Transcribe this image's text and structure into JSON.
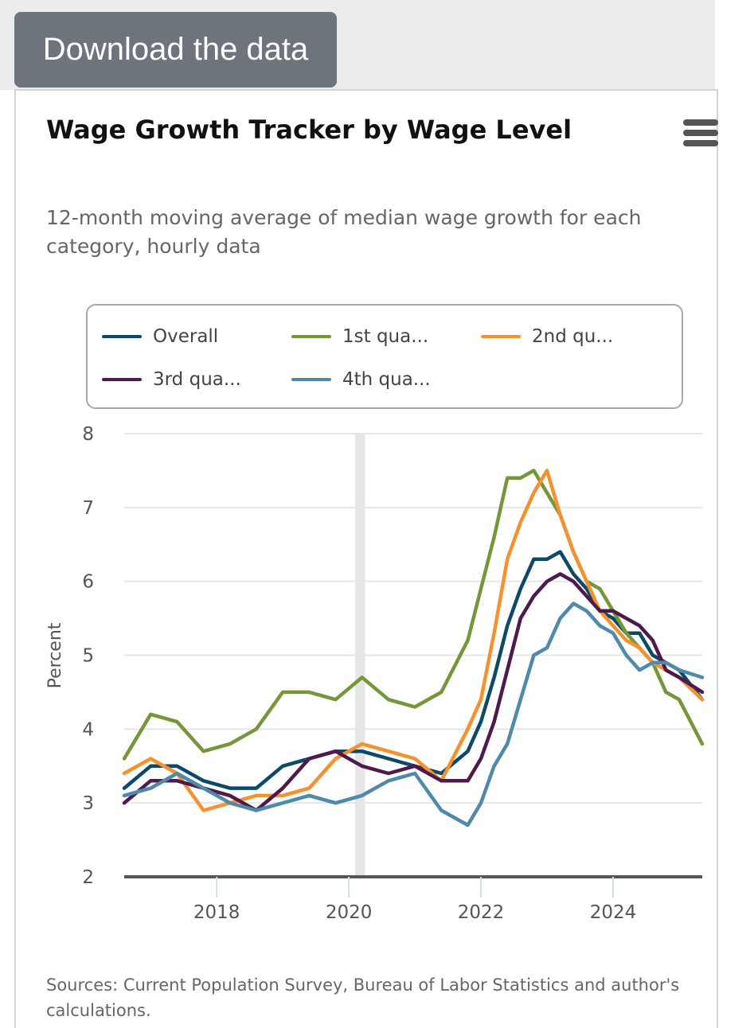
{
  "download_label": "Download the data",
  "chart_data": {
    "type": "line",
    "title": "Wage Growth Tracker by Wage Level",
    "subtitle": "12-month moving average of median wage growth for each category, hourly data",
    "xlabel": "",
    "ylabel": "Percent",
    "xlim": [
      2016.6,
      2025.35
    ],
    "ylim": [
      2,
      8
    ],
    "yticks": [
      2,
      3,
      4,
      5,
      6,
      7,
      8
    ],
    "xticks": [
      2018,
      2020,
      2022,
      2024
    ],
    "grid": true,
    "legend_position": "top",
    "shaded_band": {
      "x": 2020.17,
      "width_years": 0.15
    },
    "x": [
      2016.6,
      2017.0,
      2017.4,
      2017.8,
      2018.2,
      2018.6,
      2019.0,
      2019.4,
      2019.8,
      2020.2,
      2020.6,
      2021.0,
      2021.4,
      2021.8,
      2022.0,
      2022.2,
      2022.4,
      2022.6,
      2022.8,
      2023.0,
      2023.2,
      2023.4,
      2023.6,
      2023.8,
      2024.0,
      2024.2,
      2024.4,
      2024.6,
      2024.8,
      2025.0,
      2025.35
    ],
    "series": [
      {
        "name": "Overall",
        "color": "#0d4a6a",
        "values": [
          3.2,
          3.5,
          3.5,
          3.3,
          3.2,
          3.2,
          3.5,
          3.6,
          3.7,
          3.7,
          3.6,
          3.5,
          3.4,
          3.7,
          4.1,
          4.7,
          5.4,
          5.9,
          6.3,
          6.3,
          6.4,
          6.1,
          5.9,
          5.6,
          5.5,
          5.3,
          5.3,
          5.0,
          4.9,
          4.8,
          4.4
        ]
      },
      {
        "name": "1st qua...",
        "color": "#76963a",
        "values": [
          3.6,
          4.2,
          4.1,
          3.7,
          3.8,
          4.0,
          4.5,
          4.5,
          4.4,
          4.7,
          4.4,
          4.3,
          4.5,
          5.2,
          5.9,
          6.6,
          7.4,
          7.4,
          7.5,
          7.2,
          6.9,
          6.4,
          6.0,
          5.9,
          5.6,
          5.3,
          5.1,
          4.9,
          4.5,
          4.4,
          3.8
        ]
      },
      {
        "name": "2nd qu...",
        "color": "#f5912e",
        "values": [
          3.4,
          3.6,
          3.4,
          2.9,
          3.0,
          3.1,
          3.1,
          3.2,
          3.6,
          3.8,
          3.7,
          3.6,
          3.3,
          4.0,
          4.4,
          5.3,
          6.3,
          6.8,
          7.2,
          7.5,
          6.9,
          6.4,
          6.0,
          5.6,
          5.4,
          5.2,
          5.1,
          4.9,
          4.8,
          4.7,
          4.4
        ]
      },
      {
        "name": "3rd qua...",
        "color": "#4e1a4e",
        "values": [
          3.0,
          3.3,
          3.3,
          3.2,
          3.1,
          2.9,
          3.2,
          3.6,
          3.7,
          3.5,
          3.4,
          3.5,
          3.3,
          3.3,
          3.6,
          4.1,
          4.8,
          5.5,
          5.8,
          6.0,
          6.1,
          6.0,
          5.8,
          5.6,
          5.6,
          5.5,
          5.4,
          5.2,
          4.8,
          4.7,
          4.5
        ]
      },
      {
        "name": "4th qua...",
        "color": "#4f8aaa",
        "values": [
          3.1,
          3.2,
          3.4,
          3.2,
          3.0,
          2.9,
          3.0,
          3.1,
          3.0,
          3.1,
          3.3,
          3.4,
          2.9,
          2.7,
          3.0,
          3.5,
          3.8,
          4.4,
          5.0,
          5.1,
          5.5,
          5.7,
          5.6,
          5.4,
          5.3,
          5.0,
          4.8,
          4.9,
          4.9,
          4.8,
          4.7
        ]
      }
    ]
  },
  "source_text": "Sources: Current Population Survey, Bureau of Labor Statistics and author's calculations."
}
